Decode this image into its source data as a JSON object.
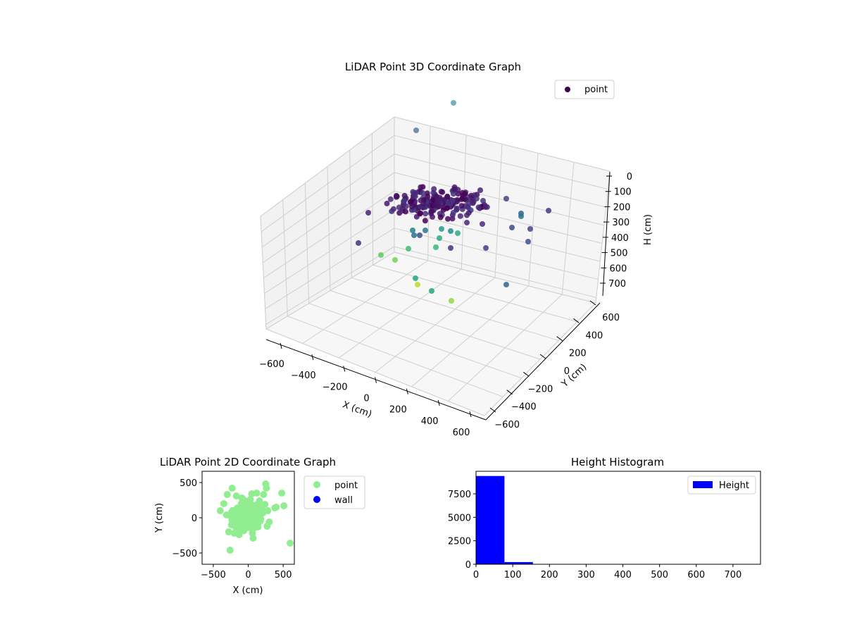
{
  "chart_data": [
    {
      "type": "scatter3d",
      "title": "LiDAR Point 3D Coordinate Graph",
      "xlabel": "X (cm)",
      "ylabel": "Y (cm)",
      "zlabel": "H (cm)",
      "xticks": [
        "−600",
        "−400",
        "−200",
        "0",
        "200",
        "400",
        "600"
      ],
      "yticks": [
        "600",
        "400",
        "200",
        "0",
        "−200",
        "−400",
        "−600"
      ],
      "zticks": [
        "0",
        "100",
        "200",
        "300",
        "400",
        "500",
        "600",
        "700"
      ],
      "legend": [
        "point"
      ],
      "legend_position": "top-right",
      "colormap": "viridis",
      "grid": true
    },
    {
      "type": "scatter",
      "title": "LiDAR Point 2D Coordinate Graph",
      "xlabel": "X (cm)",
      "ylabel": "Y (cm)",
      "xticks": [
        "−500",
        "0",
        "500"
      ],
      "yticks": [
        "500",
        "0",
        "−500"
      ],
      "xlim": [
        -660,
        660
      ],
      "ylim": [
        -660,
        660
      ],
      "series": [
        {
          "name": "point",
          "color": "#90ee90",
          "x": [
            -250,
            -220,
            -180,
            -150,
            -120,
            -100,
            -80,
            -60,
            -40,
            -20,
            0,
            20,
            40,
            60,
            80,
            100,
            120,
            150,
            180,
            200,
            -300,
            -350,
            -400,
            -280,
            -230,
            220,
            250,
            260,
            300,
            280,
            270,
            -260,
            -200,
            -170,
            -130,
            -90,
            -50,
            -10,
            30,
            70,
            110,
            160,
            210,
            240,
            -140,
            -60,
            10,
            90,
            170,
            -310,
            380,
            400,
            480,
            510,
            600,
            -240,
            -30,
            50,
            120,
            140,
            -210,
            -110,
            -70,
            0,
            60,
            130,
            190,
            -160,
            -80,
            30
          ],
          "y": [
            20,
            80,
            -50,
            120,
            -100,
            200,
            -180,
            250,
            -60,
            150,
            40,
            -140,
            190,
            -220,
            100,
            60,
            -80,
            160,
            -20,
            110,
            330,
            200,
            100,
            -200,
            420,
            330,
            480,
            420,
            -60,
            100,
            -120,
            -460,
            -220,
            310,
            -240,
            280,
            -90,
            230,
            260,
            -290,
            180,
            240,
            70,
            190,
            50,
            -30,
            0,
            30,
            -50,
            40,
            140,
            150,
            350,
            170,
            -360,
            -100,
            120,
            340,
            350,
            -130,
            10,
            -40,
            70,
            -10,
            20,
            -70,
            90,
            -150,
            140,
            -110
          ]
        },
        {
          "name": "wall",
          "color": "#0000ff",
          "x": [],
          "y": []
        }
      ],
      "legend": [
        "point",
        "wall"
      ],
      "legend_position": "outside-right"
    },
    {
      "type": "bar",
      "title": "Height Histogram",
      "xticks": [
        "0",
        "100",
        "200",
        "300",
        "400",
        "500",
        "600",
        "700"
      ],
      "yticks": [
        "0",
        "2500",
        "5000",
        "7500"
      ],
      "bin_edges": [
        0,
        77.5,
        155,
        232.5,
        310,
        387.5,
        465,
        542.5,
        620,
        697.5,
        775
      ],
      "values": [
        9400,
        230,
        8,
        5,
        4,
        3,
        3,
        2,
        2,
        1
      ],
      "xlim": [
        0,
        775
      ],
      "ylim": [
        0,
        9900
      ],
      "legend": [
        "Height"
      ],
      "legend_position": "top-right",
      "color": "#0000ff"
    }
  ]
}
